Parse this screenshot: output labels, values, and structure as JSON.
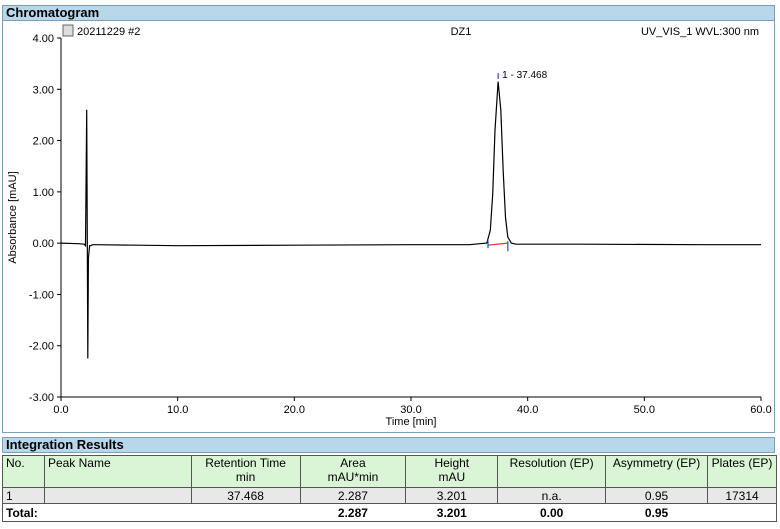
{
  "sections": {
    "chromatogram": "Chromatogram",
    "integration": "Integration Results"
  },
  "chart_data": {
    "type": "line",
    "header_left": "20211229 #2",
    "header_center": "DZ1",
    "header_right": "UV_VIS_1 WVL:300 nm",
    "xlabel": "Time [min]",
    "ylabel": "Absorbance [mAU]",
    "xlim": [
      0,
      60
    ],
    "ylim": [
      -3,
      4
    ],
    "xticks": [
      "0.0",
      "10.0",
      "20.0",
      "30.0",
      "40.0",
      "50.0",
      "60.0"
    ],
    "yticks": [
      "4.00",
      "3.00",
      "2.00",
      "1.00",
      "0.00",
      "-1.00",
      "-2.00",
      "-3.00"
    ],
    "peak_label": "1 - 37.468",
    "series": [
      {
        "color": "#000000",
        "x": [
          0,
          1.5,
          2.0,
          2.1,
          2.2,
          2.25,
          2.3,
          2.35,
          2.45,
          2.55,
          2.7,
          3.0,
          10,
          20,
          30,
          35,
          36.5,
          36.8,
          37.0,
          37.2,
          37.468,
          37.7,
          37.9,
          38.1,
          38.3,
          38.6,
          39,
          45,
          55,
          60
        ],
        "y": [
          0.0,
          -0.01,
          -0.02,
          -0.05,
          2.6,
          0.05,
          -2.25,
          -0.3,
          -0.05,
          -0.05,
          -0.03,
          -0.03,
          -0.05,
          -0.04,
          -0.03,
          -0.03,
          0.0,
          0.25,
          0.95,
          2.2,
          3.15,
          2.6,
          1.4,
          0.5,
          0.12,
          0.0,
          -0.02,
          -0.02,
          -0.03,
          -0.03
        ]
      },
      {
        "color": "#e03030",
        "x": [
          36.6,
          38.3
        ],
        "y": [
          -0.04,
          0.0
        ]
      }
    ]
  },
  "results": {
    "headers": [
      {
        "l1": "No.",
        "l2": ""
      },
      {
        "l1": "Peak Name",
        "l2": ""
      },
      {
        "l1": "Retention Time",
        "l2": "min"
      },
      {
        "l1": "Area",
        "l2": "mAU*min"
      },
      {
        "l1": "Height",
        "l2": "mAU"
      },
      {
        "l1": "Resolution (EP)",
        "l2": ""
      },
      {
        "l1": "Asymmetry (EP)",
        "l2": ""
      },
      {
        "l1": "Plates (EP)",
        "l2": ""
      }
    ],
    "row": [
      "1",
      "",
      "37.468",
      "2.287",
      "3.201",
      "n.a.",
      "0.95",
      "17314"
    ],
    "total": [
      "Total:",
      "",
      "",
      "2.287",
      "3.201",
      "0.00",
      "0.95",
      ""
    ]
  }
}
